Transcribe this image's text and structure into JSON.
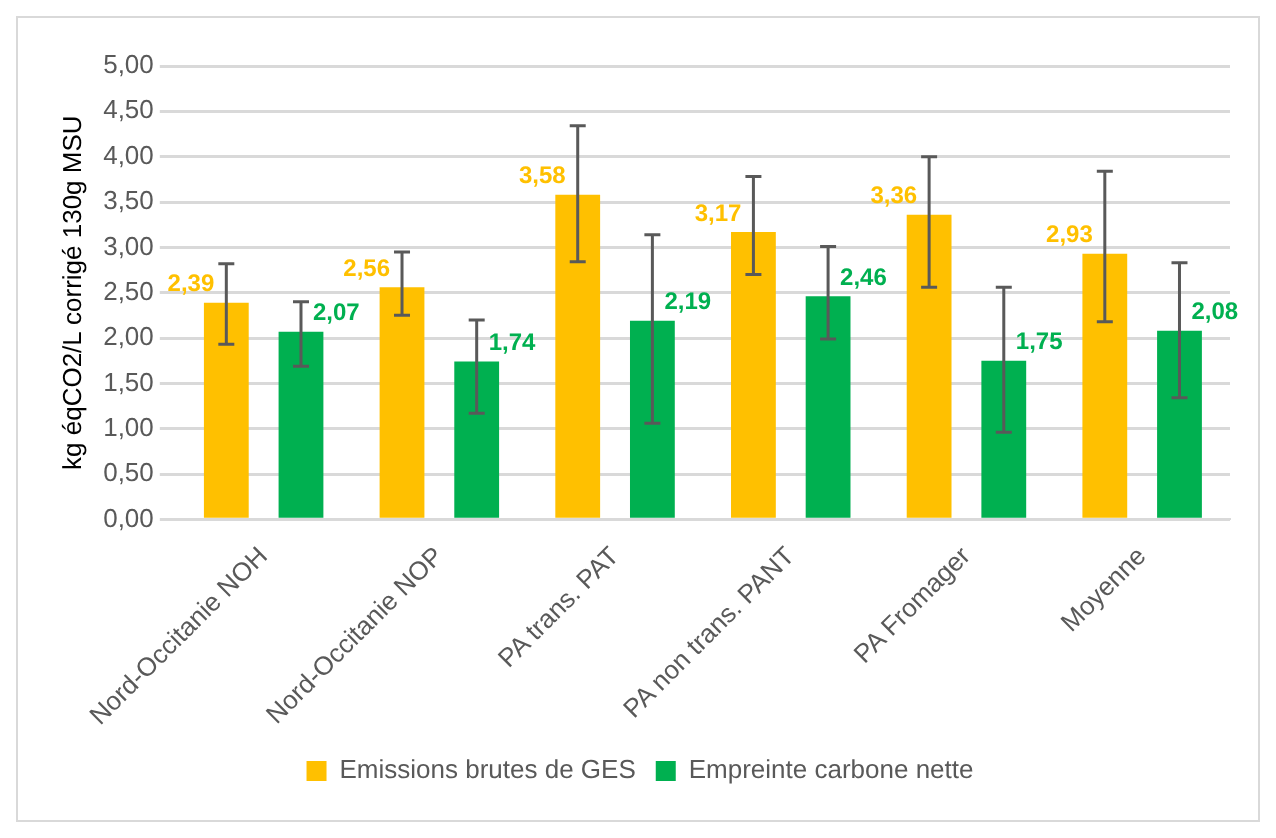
{
  "chart_data": {
    "type": "bar",
    "ylabel": "kg éqCO2/L corrigé 130g MSU",
    "categories": [
      "Nord-Occitanie NOH",
      "Nord-Occitanie NOP",
      "PA trans. PAT",
      "PA non trans. PANT",
      "PA Fromager",
      "Moyenne"
    ],
    "series": [
      {
        "name": "Emissions brutes de GES",
        "color": "#ffc000",
        "values": [
          2.39,
          2.56,
          3.58,
          3.17,
          3.36,
          2.93
        ],
        "value_labels": [
          "2,39",
          "2,56",
          "3,58",
          "3,17",
          "3,36",
          "2,93"
        ],
        "errors": [
          [
            1.93,
            2.82
          ],
          [
            2.25,
            2.95
          ],
          [
            2.84,
            4.34
          ],
          [
            2.7,
            3.78
          ],
          [
            2.56,
            4.0
          ],
          [
            2.18,
            3.84
          ]
        ]
      },
      {
        "name": "Empreinte carbone nette",
        "color": "#00b050",
        "values": [
          2.07,
          1.74,
          2.19,
          2.46,
          1.75,
          2.08
        ],
        "value_labels": [
          "2,07",
          "1,74",
          "2,19",
          "2,46",
          "1,75",
          "2,08"
        ],
        "errors": [
          [
            1.69,
            2.4
          ],
          [
            1.17,
            2.2
          ],
          [
            1.06,
            3.14
          ],
          [
            1.99,
            3.01
          ],
          [
            0.96,
            2.56
          ],
          [
            1.34,
            2.83
          ]
        ]
      }
    ],
    "ylim": [
      0,
      5
    ],
    "yticks": [
      {
        "value": 0,
        "label": "0,00"
      },
      {
        "value": 0.5,
        "label": "0,50"
      },
      {
        "value": 1,
        "label": "1,00"
      },
      {
        "value": 1.5,
        "label": "1,50"
      },
      {
        "value": 2,
        "label": "2,00"
      },
      {
        "value": 2.5,
        "label": "2,50"
      },
      {
        "value": 3,
        "label": "3,00"
      },
      {
        "value": 3.5,
        "label": "3,50"
      },
      {
        "value": 4,
        "label": "4,00"
      },
      {
        "value": 4.5,
        "label": "4,50"
      },
      {
        "value": 5,
        "label": "5,00"
      }
    ],
    "grid": "y",
    "legend": "bottom"
  }
}
